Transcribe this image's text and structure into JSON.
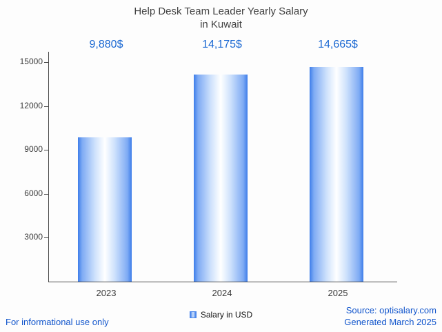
{
  "title": {
    "line1": "Help Desk Team Leader Yearly Salary",
    "line2": "in Kuwait"
  },
  "chart_data": {
    "type": "bar",
    "title": "Help Desk Team Leader Yearly Salary in Kuwait",
    "categories": [
      "2023",
      "2024",
      "2025"
    ],
    "values": [
      9880,
      14175,
      14665
    ],
    "value_labels": [
      "9,880$",
      "14,175$",
      "14,665$"
    ],
    "xlabel": "",
    "ylabel": "",
    "ylim": [
      0,
      15000
    ],
    "yticks": [
      "15000",
      "12000",
      "9000",
      "6000",
      "3000"
    ],
    "grid": false,
    "legend": {
      "label": "Salary in USD",
      "position": "bottom"
    },
    "bar_color_edge": "#3d7de9",
    "bar_color_center": "#ffffff"
  },
  "footer": {
    "informational": "For informational use only",
    "source": "Source: optisalary.com",
    "generated": "Generated March 2025"
  },
  "colors": {
    "value_label": "#1967d2",
    "footer_link": "#1155cc",
    "axis": "#4a4a4a",
    "title": "#424242"
  }
}
